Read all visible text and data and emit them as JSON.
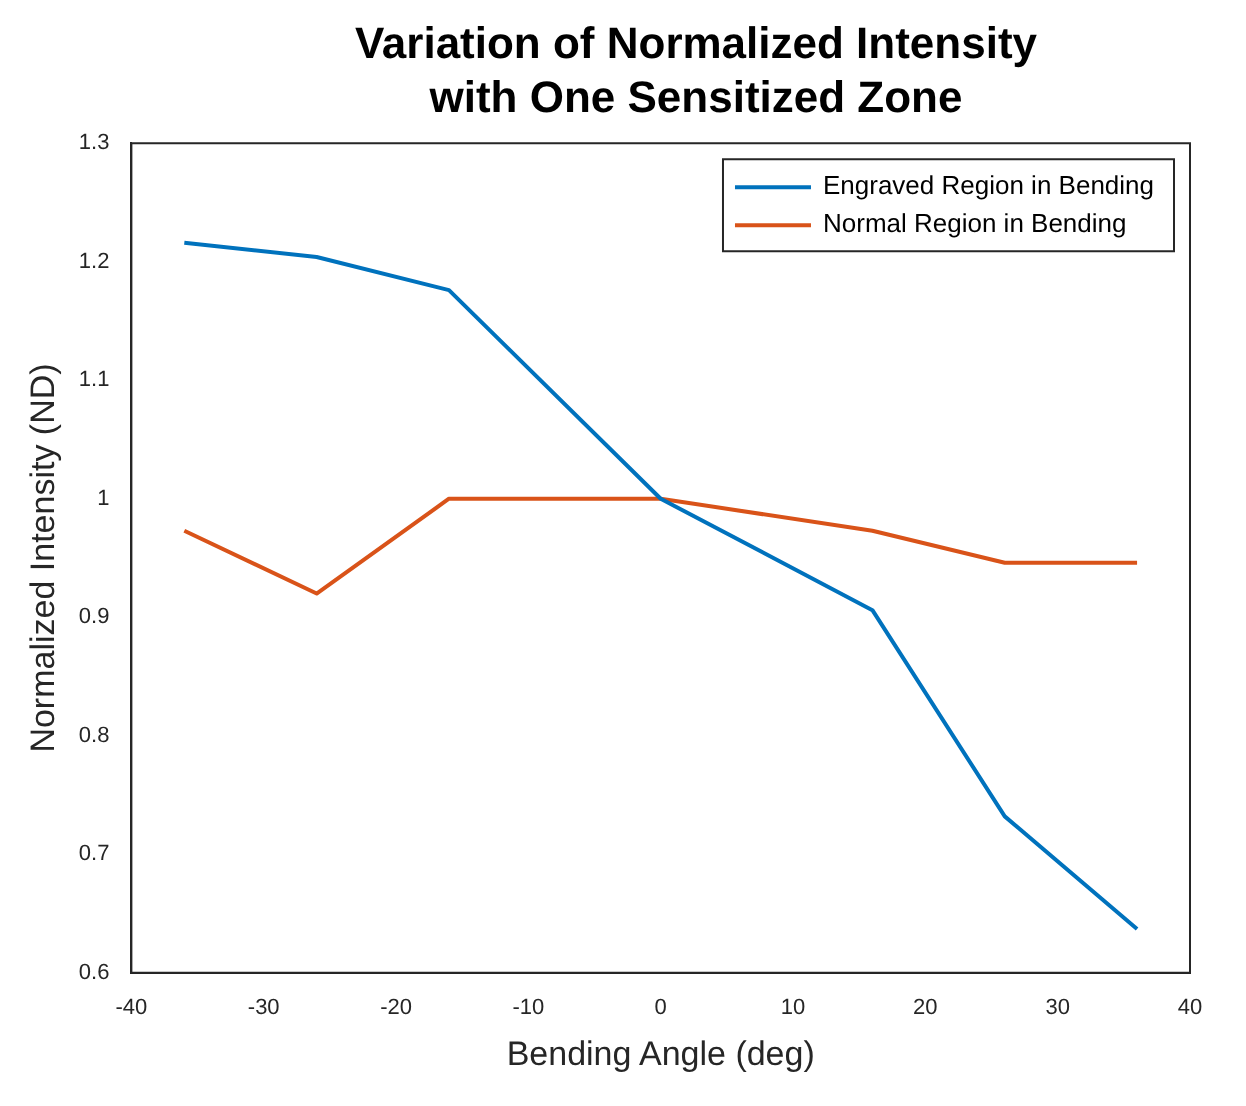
{
  "chart_data": {
    "type": "line",
    "title": "Variation of Normalized Intensity with One Sensitized Zone",
    "xlabel": "Bending Angle (deg)",
    "ylabel": "Normalized Intensity (ND)",
    "x": [
      -36,
      -26,
      -16,
      0,
      16,
      26,
      36
    ],
    "series": [
      {
        "name": "Engraved Region in Bending",
        "color": "#0072bd",
        "values": [
          1.216,
          1.204,
          1.176,
          1.0,
          0.906,
          0.732,
          0.637
        ]
      },
      {
        "name": "Normal Region in Bending",
        "color": "#d95319",
        "values": [
          0.973,
          0.92,
          1.0,
          1.0,
          0.973,
          0.946,
          0.946
        ]
      }
    ],
    "xlim": [
      -40,
      40
    ],
    "xticks": [
      -40,
      -30,
      -20,
      -10,
      0,
      10,
      20,
      30,
      40
    ],
    "ylim": [
      0.6,
      1.3
    ],
    "yticks": [
      0.6,
      0.7,
      0.8,
      0.9,
      1,
      1.1,
      1.2,
      1.3
    ],
    "grid": false,
    "legend": "top right",
    "marker": "none",
    "line_style": "solid"
  }
}
